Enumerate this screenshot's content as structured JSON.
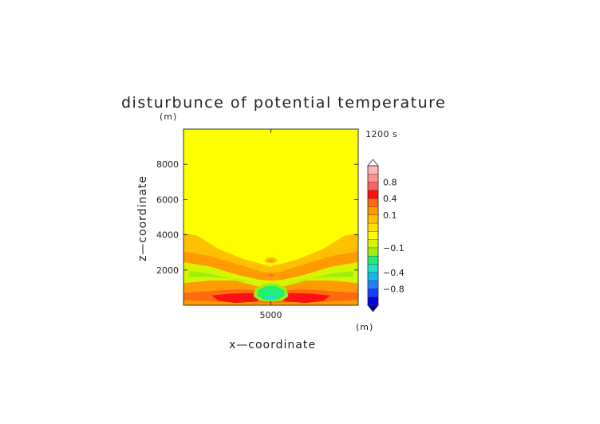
{
  "chart_data": {
    "type": "heatmap",
    "title": "disturbunce of potential temperature",
    "time_label": "1200 s",
    "xlabel": "x—coordinate",
    "ylabel": "z—coordinate",
    "x_unit": "(m)",
    "y_unit": "(m)",
    "xlim": [
      0,
      10000
    ],
    "ylim": [
      0,
      10000
    ],
    "x_ticks": [
      {
        "value": 5000,
        "label": "5000"
      }
    ],
    "y_ticks": [
      {
        "value": 2000,
        "label": "2000"
      },
      {
        "value": 4000,
        "label": "4000"
      },
      {
        "value": 6000,
        "label": "6000"
      },
      {
        "value": 8000,
        "label": "8000"
      }
    ],
    "background_color": "#ffff00",
    "colorbar": {
      "levels": [
        {
          "range": [
            0.9,
            1.0
          ],
          "color": "#ffb6b6"
        },
        {
          "range": [
            0.8,
            0.9
          ],
          "color": "#ff9090"
        },
        {
          "range": [
            0.6,
            0.8
          ],
          "color": "#ff6060"
        },
        {
          "range": [
            0.4,
            0.6
          ],
          "color": "#ff1010"
        },
        {
          "range": [
            0.2,
            0.4
          ],
          "color": "#ff6a10"
        },
        {
          "range": [
            0.1,
            0.2
          ],
          "color": "#ff9a00"
        },
        {
          "range": [
            0.05,
            0.1
          ],
          "color": "#ffc000"
        },
        {
          "range": [
            0.0,
            0.05
          ],
          "color": "#ffe000"
        },
        {
          "range": [
            -0.05,
            0.0
          ],
          "color": "#ffff00"
        },
        {
          "range": [
            -0.1,
            -0.05
          ],
          "color": "#d6f500"
        },
        {
          "range": [
            -0.2,
            -0.1
          ],
          "color": "#a0ee10"
        },
        {
          "range": [
            -0.3,
            -0.2
          ],
          "color": "#20f070"
        },
        {
          "range": [
            -0.4,
            -0.3
          ],
          "color": "#20e0c8"
        },
        {
          "range": [
            -0.6,
            -0.4
          ],
          "color": "#10b8f0"
        },
        {
          "range": [
            -0.8,
            -0.6
          ],
          "color": "#2080ff"
        },
        {
          "range": [
            -0.9,
            -0.8
          ],
          "color": "#1040ff"
        },
        {
          "range": [
            -1.0,
            -0.9
          ],
          "color": "#0000e0"
        }
      ],
      "labels": [
        {
          "value": 0.8,
          "label": "0.8"
        },
        {
          "value": 0.4,
          "label": "0.4"
        },
        {
          "value": 0.1,
          "label": "0.1"
        },
        {
          "value": -0.1,
          "label": "−0.1"
        },
        {
          "value": -0.4,
          "label": "−0.4"
        },
        {
          "value": -0.8,
          "label": "−0.8"
        }
      ]
    },
    "regions": [
      {
        "level": 0.05,
        "polygon": [
          [
            0,
            4100
          ],
          [
            800,
            3950
          ],
          [
            2000,
            3200
          ],
          [
            3500,
            2600
          ],
          [
            5000,
            2200
          ],
          [
            6500,
            2600
          ],
          [
            8000,
            3200
          ],
          [
            9200,
            3950
          ],
          [
            10000,
            4100
          ],
          [
            10000,
            0
          ],
          [
            0,
            0
          ]
        ]
      },
      {
        "level": 0.1,
        "polygon": [
          [
            0,
            3050
          ],
          [
            1500,
            2800
          ],
          [
            3000,
            2350
          ],
          [
            4500,
            1900
          ],
          [
            5000,
            1850
          ],
          [
            5500,
            1900
          ],
          [
            7000,
            2350
          ],
          [
            8500,
            2800
          ],
          [
            10000,
            3050
          ],
          [
            10000,
            0
          ],
          [
            0,
            0
          ]
        ]
      },
      {
        "level": -0.1,
        "polygon": [
          [
            0,
            2450
          ],
          [
            1500,
            2200
          ],
          [
            3000,
            1750
          ],
          [
            4300,
            1450
          ],
          [
            5000,
            1400
          ],
          [
            5700,
            1450
          ],
          [
            7000,
            1750
          ],
          [
            8500,
            2200
          ],
          [
            10000,
            2450
          ],
          [
            10000,
            1250
          ],
          [
            8500,
            1400
          ],
          [
            7000,
            1400
          ],
          [
            5700,
            1050
          ],
          [
            5000,
            1000
          ],
          [
            4300,
            1050
          ],
          [
            3000,
            1400
          ],
          [
            1500,
            1400
          ],
          [
            0,
            1250
          ]
        ]
      },
      {
        "level": -0.2,
        "polygon": [
          [
            300,
            1950
          ],
          [
            1500,
            1800
          ],
          [
            3000,
            1450
          ],
          [
            4300,
            1200
          ],
          [
            5000,
            1150
          ],
          [
            5700,
            1200
          ],
          [
            7000,
            1450
          ],
          [
            8500,
            1800
          ],
          [
            9700,
            1950
          ],
          [
            9700,
            1600
          ],
          [
            8500,
            1600
          ],
          [
            7000,
            1500
          ],
          [
            5700,
            1200
          ],
          [
            5000,
            1150
          ],
          [
            4300,
            1200
          ],
          [
            3000,
            1500
          ],
          [
            1500,
            1600
          ],
          [
            300,
            1600
          ]
        ]
      },
      {
        "level": 0.1,
        "polygon": [
          [
            0,
            1250
          ],
          [
            1500,
            1400
          ],
          [
            3000,
            1400
          ],
          [
            4300,
            1050
          ],
          [
            5000,
            1000
          ],
          [
            5700,
            1050
          ],
          [
            7000,
            1400
          ],
          [
            8500,
            1400
          ],
          [
            10000,
            1250
          ],
          [
            10000,
            0
          ],
          [
            0,
            0
          ]
        ]
      },
      {
        "level": 0.2,
        "polygon": [
          [
            0,
            700
          ],
          [
            1500,
            800
          ],
          [
            3000,
            900
          ],
          [
            4200,
            850
          ],
          [
            5800,
            850
          ],
          [
            7000,
            900
          ],
          [
            8500,
            800
          ],
          [
            10000,
            700
          ],
          [
            10000,
            300
          ],
          [
            8000,
            200
          ],
          [
            5000,
            150
          ],
          [
            2000,
            200
          ],
          [
            0,
            300
          ]
        ]
      },
      {
        "level": 0.4,
        "polygon": [
          [
            1600,
            550
          ],
          [
            2600,
            650
          ],
          [
            3800,
            700
          ],
          [
            4500,
            560
          ],
          [
            4200,
            220
          ],
          [
            3000,
            130
          ],
          [
            2000,
            250
          ]
        ]
      },
      {
        "level": 0.4,
        "polygon": [
          [
            8400,
            550
          ],
          [
            7400,
            650
          ],
          [
            6200,
            700
          ],
          [
            5500,
            560
          ],
          [
            5800,
            220
          ],
          [
            7000,
            130
          ],
          [
            8000,
            250
          ]
        ]
      },
      {
        "level": -0.2,
        "polygon": [
          [
            4100,
            950
          ],
          [
            4600,
            1200
          ],
          [
            5000,
            1250
          ],
          [
            5400,
            1200
          ],
          [
            5900,
            950
          ],
          [
            6000,
            500
          ],
          [
            5600,
            250
          ],
          [
            5000,
            200
          ],
          [
            4400,
            250
          ],
          [
            4000,
            500
          ]
        ]
      },
      {
        "level": -0.3,
        "polygon": [
          [
            4250,
            850
          ],
          [
            4700,
            1080
          ],
          [
            5000,
            1100
          ],
          [
            5300,
            1080
          ],
          [
            5750,
            850
          ],
          [
            5800,
            550
          ],
          [
            5400,
            320
          ],
          [
            5000,
            280
          ],
          [
            4600,
            320
          ],
          [
            4200,
            550
          ]
        ]
      },
      {
        "level": -0.4,
        "polygon": [
          [
            4700,
            550
          ],
          [
            5000,
            620
          ],
          [
            5300,
            550
          ],
          [
            5300,
            380
          ],
          [
            5000,
            320
          ],
          [
            4700,
            380
          ]
        ]
      },
      {
        "level": 0.05,
        "polygon": [
          [
            4600,
            2550
          ],
          [
            4800,
            2700
          ],
          [
            5200,
            2700
          ],
          [
            5400,
            2550
          ],
          [
            5200,
            2400
          ],
          [
            4800,
            2400
          ]
        ]
      },
      {
        "level": 0.1,
        "polygon": [
          [
            4750,
            2550
          ],
          [
            5000,
            2650
          ],
          [
            5250,
            2550
          ],
          [
            5000,
            2450
          ]
        ]
      },
      {
        "level": 0.2,
        "polygon": [
          [
            4800,
            1700
          ],
          [
            5000,
            1780
          ],
          [
            5200,
            1700
          ],
          [
            5000,
            1620
          ]
        ]
      }
    ]
  }
}
